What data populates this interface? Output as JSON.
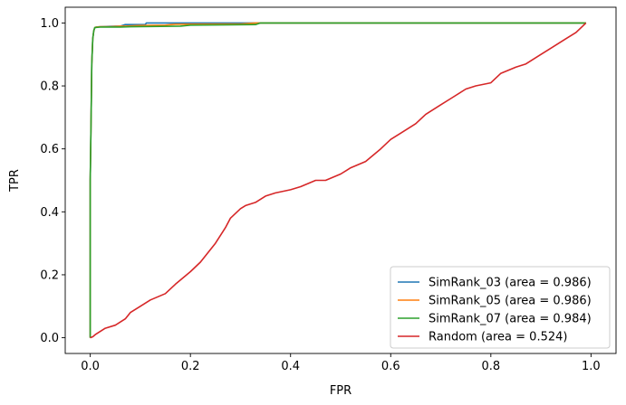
{
  "chart_data": {
    "type": "line",
    "title": "",
    "xlabel": "FPR",
    "ylabel": "TPR",
    "xlim": [
      -0.05,
      1.05
    ],
    "ylim": [
      -0.05,
      1.05
    ],
    "xticks": [
      0.0,
      0.2,
      0.4,
      0.6,
      0.8,
      1.0
    ],
    "yticks": [
      0.0,
      0.2,
      0.4,
      0.6,
      0.8,
      1.0
    ],
    "xtick_labels": [
      "0.0",
      "0.2",
      "0.4",
      "0.6",
      "0.8",
      "1.0"
    ],
    "ytick_labels": [
      "0.0",
      "0.2",
      "0.4",
      "0.6",
      "0.8",
      "1.0"
    ],
    "grid": false,
    "legend_position": "lower-right",
    "series": [
      {
        "name": "SimRank_03 (area = 0.986)",
        "color": "#1f77b4",
        "x": [
          0.0,
          0.0,
          0.002,
          0.003,
          0.005,
          0.007,
          0.009,
          0.012,
          0.02,
          0.05,
          0.06,
          0.07,
          0.11,
          0.112,
          0.15,
          0.18,
          0.25,
          0.33,
          0.5,
          0.7,
          0.9,
          0.99
        ],
        "y": [
          0.0,
          0.5,
          0.73,
          0.87,
          0.95,
          0.975,
          0.985,
          0.987,
          0.988,
          0.99,
          0.99,
          0.995,
          0.995,
          1.0,
          1.0,
          1.0,
          1.0,
          1.0,
          1.0,
          1.0,
          1.0,
          1.0
        ]
      },
      {
        "name": "SimRank_05 (area = 0.986)",
        "color": "#ff7f0e",
        "x": [
          0.0,
          0.0,
          0.002,
          0.003,
          0.005,
          0.007,
          0.009,
          0.012,
          0.02,
          0.04,
          0.06,
          0.07,
          0.1,
          0.15,
          0.17,
          0.3,
          0.33,
          0.5,
          0.7,
          0.9,
          0.99
        ],
        "y": [
          0.0,
          0.5,
          0.73,
          0.87,
          0.95,
          0.975,
          0.985,
          0.987,
          0.988,
          0.988,
          0.99,
          0.99,
          0.992,
          0.993,
          0.996,
          0.997,
          1.0,
          1.0,
          1.0,
          1.0,
          1.0
        ]
      },
      {
        "name": "SimRank_07 (area = 0.984)",
        "color": "#2ca02c",
        "x": [
          0.0,
          0.0,
          0.002,
          0.003,
          0.005,
          0.007,
          0.009,
          0.012,
          0.02,
          0.06,
          0.08,
          0.18,
          0.2,
          0.33,
          0.34,
          0.5,
          0.7,
          0.9,
          0.99
        ],
        "y": [
          0.0,
          0.5,
          0.73,
          0.87,
          0.95,
          0.975,
          0.985,
          0.986,
          0.987,
          0.987,
          0.988,
          0.99,
          0.993,
          0.995,
          1.0,
          1.0,
          1.0,
          1.0,
          1.0
        ]
      },
      {
        "name": "Random (area = 0.524)",
        "color": "#d62728",
        "x": [
          0.0,
          0.005,
          0.01,
          0.02,
          0.03,
          0.05,
          0.06,
          0.07,
          0.08,
          0.1,
          0.12,
          0.15,
          0.17,
          0.2,
          0.22,
          0.25,
          0.27,
          0.28,
          0.3,
          0.31,
          0.33,
          0.35,
          0.37,
          0.4,
          0.42,
          0.45,
          0.47,
          0.5,
          0.52,
          0.55,
          0.58,
          0.6,
          0.62,
          0.65,
          0.67,
          0.7,
          0.72,
          0.75,
          0.77,
          0.8,
          0.82,
          0.85,
          0.87,
          0.9,
          0.92,
          0.95,
          0.97,
          0.99
        ],
        "y": [
          0.0,
          0.003,
          0.01,
          0.02,
          0.03,
          0.04,
          0.05,
          0.06,
          0.08,
          0.1,
          0.12,
          0.14,
          0.17,
          0.21,
          0.24,
          0.3,
          0.35,
          0.38,
          0.41,
          0.42,
          0.43,
          0.45,
          0.46,
          0.47,
          0.48,
          0.5,
          0.5,
          0.52,
          0.54,
          0.56,
          0.6,
          0.63,
          0.65,
          0.68,
          0.71,
          0.74,
          0.76,
          0.79,
          0.8,
          0.81,
          0.84,
          0.86,
          0.87,
          0.9,
          0.92,
          0.95,
          0.97,
          1.0
        ]
      }
    ]
  }
}
